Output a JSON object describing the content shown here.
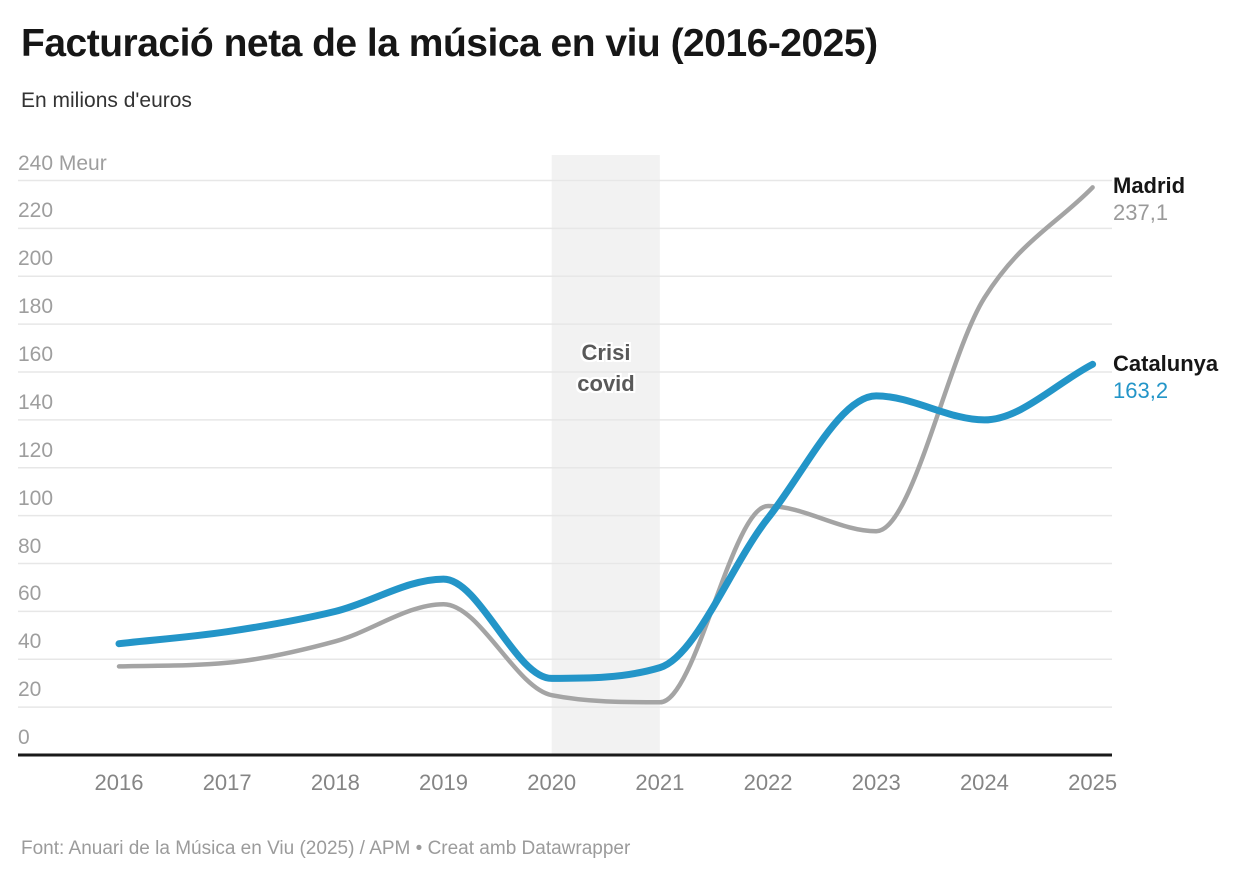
{
  "header": {
    "title": "Facturació neta de la música en viu (2016-2025)",
    "subtitle": "En milions d'euros"
  },
  "footer": {
    "text": "Font: Anuari de la Música en Viu (2025) / APM • Creat amb Datawrapper"
  },
  "chart_data": {
    "type": "line",
    "title": "Facturació neta de la música en viu (2016-2025)",
    "subtitle": "En milions d'euros",
    "x": [
      2016,
      2017,
      2018,
      2019,
      2020,
      2021,
      2022,
      2023,
      2024,
      2025
    ],
    "x_tick_labels": [
      "2016",
      "2017",
      "2018",
      "2019",
      "2020",
      "2021",
      "2022",
      "2023",
      "2024",
      "2025"
    ],
    "series": [
      {
        "name": "Madrid",
        "color": "#a4a4a4",
        "label_color": "#9a9a9a",
        "stroke_width": 4.5,
        "values": [
          37,
          38.5,
          47.5,
          63,
          25,
          22,
          104,
          93.5,
          191,
          237.1
        ],
        "end_value_label": "237,1"
      },
      {
        "name": "Catalunya",
        "color": "#2395c8",
        "label_color": "#2395c8",
        "stroke_width": 7,
        "values": [
          46.5,
          51.5,
          60,
          73.5,
          32,
          36.5,
          99,
          150,
          140,
          163.2
        ],
        "end_value_label": "163,2"
      }
    ],
    "ylim": [
      0,
      240
    ],
    "ytick_step": 20,
    "y_unit": "Meur",
    "grid": true,
    "legend_position": "right-end-labels",
    "annotation": {
      "label": "Crisi covid",
      "x_from": 2020,
      "x_to": 2021,
      "fill": "#f2f2f2"
    }
  }
}
